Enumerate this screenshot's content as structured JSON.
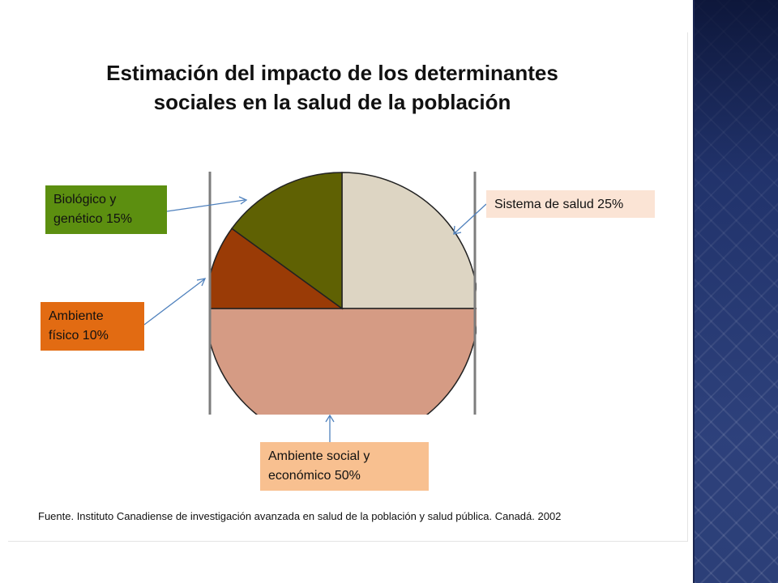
{
  "title": {
    "line1": "Estimación del impacto de los determinantes",
    "line2": "sociales en la salud de la población"
  },
  "callouts": {
    "biologico": {
      "line1": "Biológico y",
      "line2": "genético 15%",
      "color": "#5c8f10"
    },
    "fisico": {
      "line1": "Ambiente",
      "line2": "físico 10%",
      "color": "#e26b12"
    },
    "salud": {
      "line1": "Sistema de salud 25%",
      "color": "#fbe4d5"
    },
    "social": {
      "line1": "Ambiente social y",
      "line2": "económico 50%",
      "color": "#f8c090"
    }
  },
  "source": "Fuente. Instituto Canadiense de investigación avanzada en salud de la población y salud pública. Canadá. 2002",
  "chart_data": {
    "type": "pie",
    "title": "Estimación del impacto de los determinantes sociales en la salud de la población",
    "slices": [
      {
        "label": "Sistema de salud",
        "value": 25,
        "color": "#ddd5c3"
      },
      {
        "label": "Ambiente social y económico",
        "value": 50,
        "color": "#d59b84"
      },
      {
        "label": "Ambiente físico",
        "value": 10,
        "color": "#9a3b06"
      },
      {
        "label": "Biológico y genético",
        "value": 15,
        "color": "#5f6103"
      }
    ],
    "unit": "%"
  }
}
